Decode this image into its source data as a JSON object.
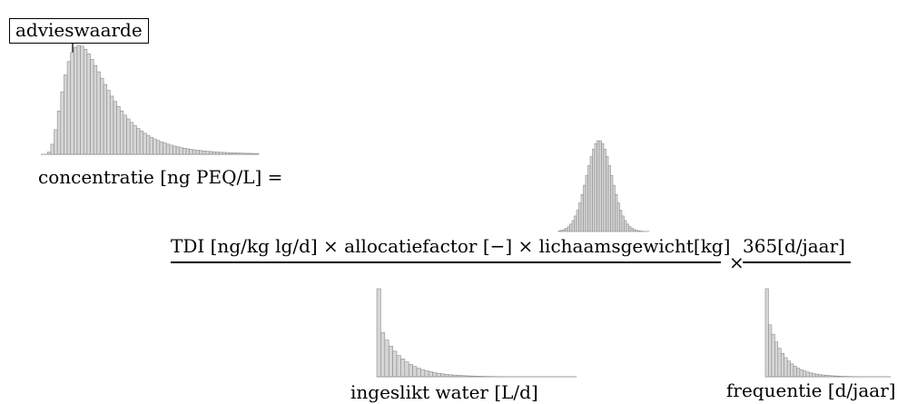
{
  "labels": {
    "advieswaarde": "advieswaarde",
    "lhs": "concentratie [ng PEQ/L] =",
    "numerator": "TDI [ng/kg  lg/d] × allocatiefactor [−] × lichaamsgewicht[kg]",
    "times": "×",
    "second_numerator": "365[d/jaar]",
    "ingeslikt_water": "ingeslikt water [L/d]",
    "frequentie": "frequentie [d/jaar]"
  },
  "distributions": {
    "concentratie": {
      "shape": "right-skewed bell",
      "bars": 66
    },
    "tdi": {
      "shape": "bell",
      "bars": 40
    },
    "ingeslikt_water": {
      "shape": "exponential decay",
      "bars": 50
    },
    "frequentie": {
      "shape": "exponential decay",
      "bars": 40
    }
  },
  "colors": {
    "bar_fill": "#d6d6d6",
    "bar_stroke": "#8c8c8c",
    "text": "#000000"
  }
}
